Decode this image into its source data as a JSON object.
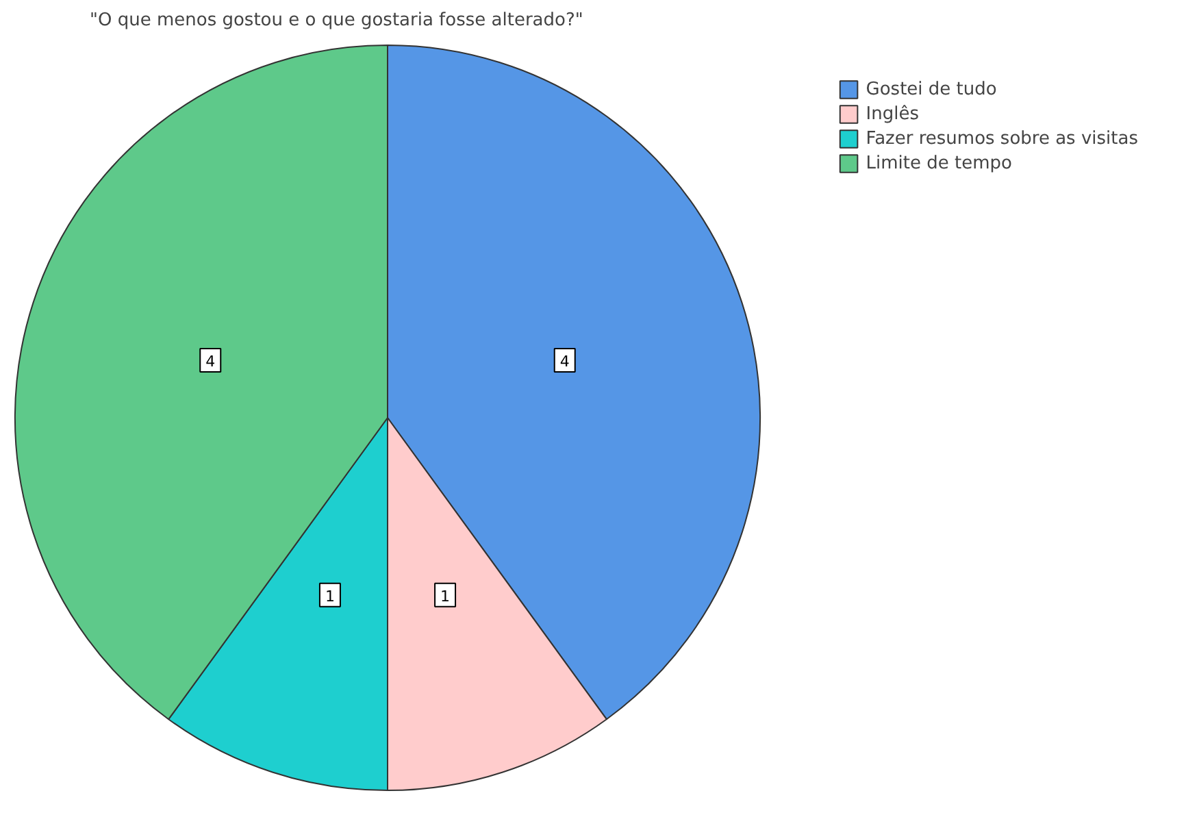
{
  "chart_data": {
    "type": "pie",
    "title": "\"O que menos gostou e o que gostaria fosse alterado?\"",
    "categories": [
      "Gostei de tudo",
      "Inglês",
      "Fazer resumos sobre as visitas",
      "Limite de tempo"
    ],
    "values": [
      4,
      1,
      1,
      4
    ],
    "colors": [
      "#5596e6",
      "#ffcccc",
      "#1ecfcf",
      "#5ec98a"
    ],
    "data_labels": true,
    "legend": "top right"
  }
}
